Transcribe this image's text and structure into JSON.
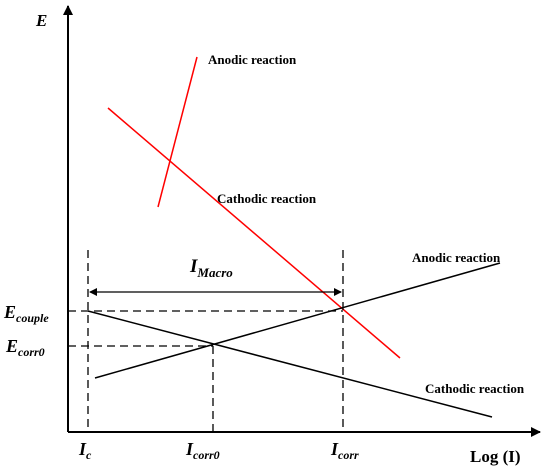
{
  "axes": {
    "y_label": "E",
    "x_label": "Log (I)"
  },
  "upper_pair": {
    "anodic_label": "Anodic reaction",
    "cathodic_label": "Cathodic reaction",
    "color": "#ff0000"
  },
  "lower_pair": {
    "anodic_label": "Anodic reaction",
    "cathodic_label": "Cathodic reaction",
    "color": "#000000"
  },
  "potentials": {
    "e_couple": {
      "main": "E",
      "sub": "couple"
    },
    "e_corr0": {
      "main": "E",
      "sub": "corr0"
    }
  },
  "currents": {
    "i_c": {
      "main": "I",
      "sub": "c"
    },
    "i_corr0": {
      "main": "I",
      "sub": "corr0"
    },
    "i_corr": {
      "main": "I",
      "sub": "corr"
    }
  },
  "macro_current": {
    "main": "I",
    "sub": "Macro"
  }
}
